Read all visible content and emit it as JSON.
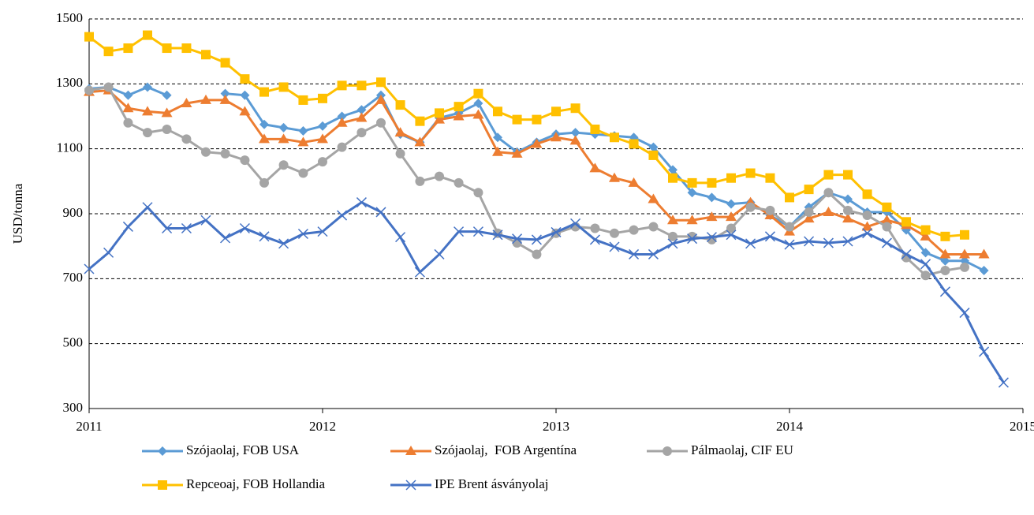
{
  "chart_data": {
    "type": "line",
    "ylabel": "USD/tonna",
    "x": [
      2011,
      2011.083,
      2011.167,
      2011.25,
      2011.333,
      2011.417,
      2011.5,
      2011.583,
      2011.667,
      2011.75,
      2011.833,
      2011.917,
      2012,
      2012.083,
      2012.167,
      2012.25,
      2012.333,
      2012.417,
      2012.5,
      2012.583,
      2012.667,
      2012.75,
      2012.833,
      2012.917,
      2013,
      2013.083,
      2013.167,
      2013.25,
      2013.333,
      2013.417,
      2013.5,
      2013.583,
      2013.667,
      2013.75,
      2013.833,
      2013.917,
      2014,
      2014.083,
      2014.167,
      2014.25,
      2014.333,
      2014.417,
      2014.5,
      2014.583,
      2014.667,
      2014.75,
      2014.833,
      2014.917
    ],
    "xlim": [
      2011,
      2015
    ],
    "xticks": [
      2011,
      2012,
      2013,
      2014,
      2015
    ],
    "ylim": [
      300,
      1500
    ],
    "yticks": [
      300,
      500,
      700,
      900,
      1100,
      1300,
      1500
    ],
    "grid": true,
    "series": [
      {
        "name": "Szójaolaj, FOB USA",
        "color": "#5b9bd5",
        "marker": "diamond",
        "values": [
          1285,
          1290,
          1265,
          1290,
          1265,
          null,
          null,
          1270,
          1265,
          1175,
          1165,
          1155,
          1170,
          1200,
          1220,
          1265,
          1145,
          1120,
          1195,
          1210,
          1240,
          1135,
          1090,
          1120,
          1145,
          1150,
          1145,
          1140,
          1135,
          1105,
          1035,
          965,
          950,
          930,
          935,
          895,
          860,
          920,
          965,
          945,
          905,
          905,
          850,
          780,
          755,
          755,
          725,
          null
        ]
      },
      {
        "name": "Szójaolaj,  FOB Argentína",
        "color": "#ed7d31",
        "marker": "triangle",
        "values": [
          1275,
          1280,
          1225,
          1215,
          1210,
          1240,
          1250,
          1250,
          1215,
          1130,
          1130,
          1120,
          1130,
          1180,
          1195,
          1250,
          1150,
          1120,
          1190,
          1200,
          1205,
          1090,
          1085,
          1115,
          1135,
          1125,
          1040,
          1010,
          995,
          945,
          880,
          880,
          890,
          890,
          935,
          895,
          845,
          885,
          905,
          885,
          860,
          880,
          865,
          830,
          775,
          775,
          775,
          null
        ]
      },
      {
        "name": "Pálmaolaj, CIF EU",
        "color": "#a5a5a5",
        "marker": "circle",
        "values": [
          1280,
          1290,
          1180,
          1150,
          1160,
          1130,
          1090,
          1085,
          1065,
          995,
          1050,
          1025,
          1060,
          1105,
          1150,
          1180,
          1085,
          1000,
          1015,
          995,
          965,
          840,
          810,
          775,
          840,
          860,
          855,
          840,
          850,
          860,
          830,
          830,
          820,
          855,
          920,
          910,
          860,
          905,
          965,
          910,
          895,
          860,
          765,
          710,
          725,
          735,
          null,
          null
        ]
      },
      {
        "name": "Repceoaj, FOB Hollandia",
        "color": "#ffc000",
        "marker": "square",
        "values": [
          1445,
          1400,
          1410,
          1450,
          1410,
          1410,
          1390,
          1365,
          1315,
          1275,
          1290,
          1250,
          1255,
          1295,
          1295,
          1305,
          1235,
          1185,
          1210,
          1230,
          1270,
          1215,
          1190,
          1190,
          1215,
          1225,
          1160,
          1135,
          1115,
          1080,
          1010,
          995,
          995,
          1010,
          1025,
          1010,
          950,
          975,
          1020,
          1020,
          960,
          920,
          875,
          850,
          830,
          835,
          null,
          null
        ]
      },
      {
        "name": "IPE Brent ásványolaj",
        "color": "#4472c4",
        "marker": "x",
        "values": [
          730,
          780,
          860,
          920,
          855,
          855,
          880,
          825,
          855,
          830,
          808,
          838,
          845,
          895,
          935,
          905,
          828,
          720,
          775,
          845,
          845,
          835,
          823,
          820,
          843,
          870,
          820,
          798,
          775,
          775,
          808,
          823,
          828,
          835,
          808,
          830,
          805,
          815,
          810,
          815,
          840,
          810,
          775,
          745,
          660,
          595,
          475,
          380
        ]
      }
    ]
  }
}
